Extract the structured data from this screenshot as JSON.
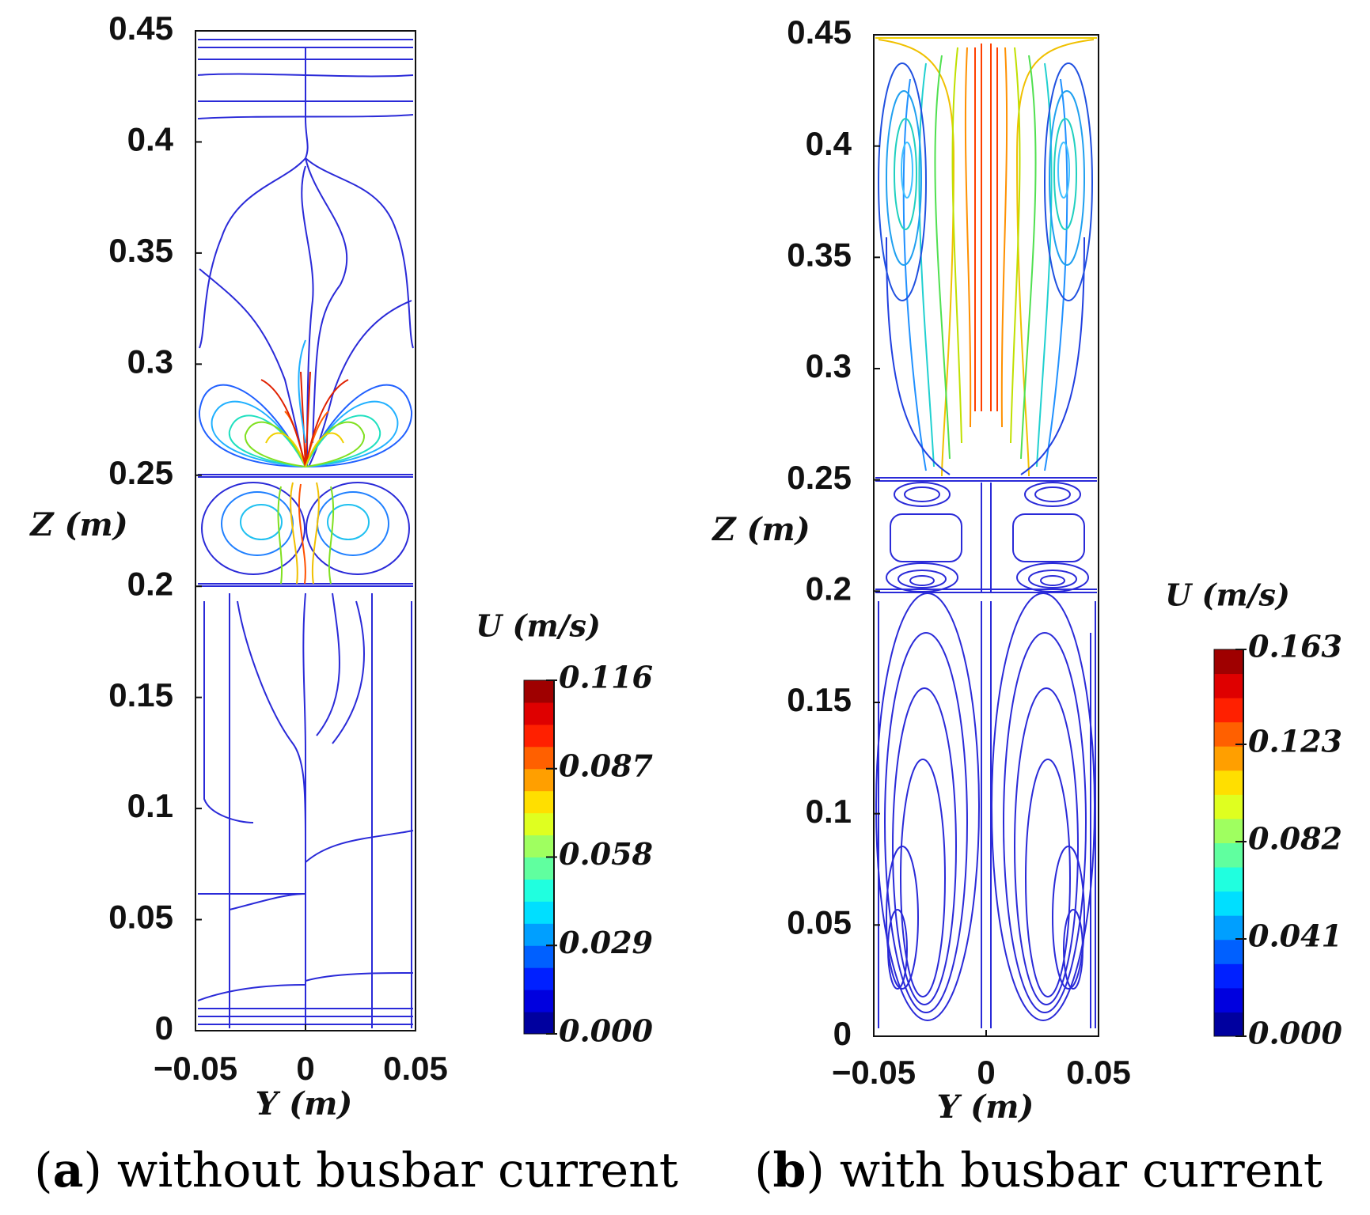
{
  "chart_data": [
    {
      "type": "streamline",
      "caption_parts": [
        "(",
        "a",
        ") without busbar current"
      ],
      "xlabel": "Y (m)",
      "ylabel": "Z (m)",
      "xlim": [
        -0.05,
        0.05
      ],
      "xticks": [
        {
          "value": -0.05,
          "label": "−0.05"
        },
        0,
        0.05
      ],
      "ylim": [
        0,
        0.45
      ],
      "yticks": [
        0,
        0.05,
        0.1,
        0.15,
        0.2,
        0.25,
        0.3,
        0.35,
        0.4,
        0.45
      ],
      "colorbar": {
        "title": "U (m/s)",
        "lim": [
          0,
          0.116
        ],
        "ticks": [
          {
            "value": 0,
            "label": "0.000"
          },
          {
            "value": 0.029,
            "label": "0.029"
          },
          {
            "value": 0.058,
            "label": "0.058"
          },
          {
            "value": 0.087,
            "label": "0.087"
          },
          {
            "value": 0.116,
            "label": "0.116"
          }
        ]
      }
    },
    {
      "type": "streamline",
      "caption_parts": [
        "(",
        "b",
        ") with busbar current"
      ],
      "xlabel": "Y (m)",
      "ylabel": "Z (m)",
      "xlim": [
        -0.05,
        0.05
      ],
      "xticks": [
        {
          "value": -0.05,
          "label": "−0.05"
        },
        0,
        0.05
      ],
      "ylim": [
        0,
        0.45
      ],
      "yticks": [
        0,
        0.05,
        0.1,
        0.15,
        0.2,
        0.25,
        0.3,
        0.35,
        0.4,
        0.45
      ],
      "colorbar": {
        "title": "U (m/s)",
        "lim": [
          0,
          0.163
        ],
        "ticks": [
          {
            "value": 0,
            "label": "0.000"
          },
          {
            "value": 0.041,
            "label": "0.041"
          },
          {
            "value": 0.082,
            "label": "0.082"
          },
          {
            "value": 0.123,
            "label": "0.123"
          },
          {
            "value": 0.163,
            "label": "0.163"
          }
        ]
      }
    }
  ]
}
